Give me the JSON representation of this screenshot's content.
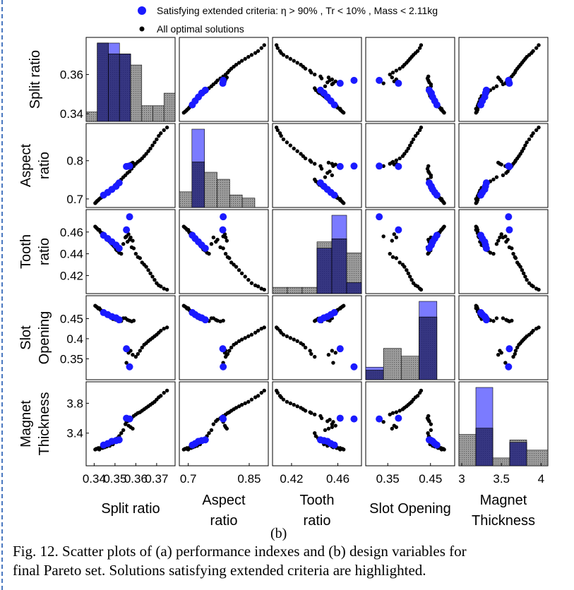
{
  "legend": {
    "highlight_label": "Satisfying extended criteria: η > 90% , Tr < 10% , Mass < 2.11kg",
    "all_label": "All optimal solutions",
    "highlight_color": "#1a1aff",
    "all_color": "#000000"
  },
  "panel_letter": "(b)",
  "caption": {
    "line1": "Fig. 12. Scatter plots of (a) performance indexes and (b) design variables for",
    "line2": "final Pareto set. Solutions satisfying extended criteria are highlighted."
  },
  "chart_data": {
    "type": "scatter",
    "variables": [
      {
        "key": "split",
        "name": "Split ratio",
        "ylabel": [
          "Split ratio"
        ],
        "xlabel": [
          "Split ratio"
        ],
        "range": [
          0.3375,
          0.3775
        ],
        "yticks": [
          {
            "v": 0.34,
            "t": "0.34"
          },
          {
            "v": 0.36,
            "t": "0.36"
          }
        ],
        "xticks": [
          {
            "v": 0.34,
            "t": "0.34"
          },
          {
            "v": 0.35,
            "t": "0.35"
          },
          {
            "v": 0.36,
            "t": "0.36"
          },
          {
            "v": 0.37,
            "t": "0.37"
          }
        ]
      },
      {
        "key": "aspect",
        "name": "Aspect ratio",
        "ylabel": [
          "Aspect",
          "ratio"
        ],
        "xlabel": [
          "Aspect",
          "ratio"
        ],
        "range": [
          0.685,
          0.89
        ],
        "yticks": [
          {
            "v": 0.7,
            "t": "0.7"
          },
          {
            "v": 0.8,
            "t": "0.8"
          }
        ],
        "xticks": [
          {
            "v": 0.7,
            "t": "0.7"
          },
          {
            "v": 0.85,
            "t": "0.85"
          }
        ]
      },
      {
        "key": "tooth",
        "name": "Tooth ratio",
        "ylabel": [
          "Tooth",
          "ratio"
        ],
        "xlabel": [
          "Tooth",
          "ratio"
        ],
        "range": [
          0.406,
          0.478
        ],
        "yticks": [
          {
            "v": 0.42,
            "t": "0.42"
          },
          {
            "v": 0.44,
            "t": "0.44"
          },
          {
            "v": 0.46,
            "t": "0.46"
          }
        ],
        "xticks": [
          {
            "v": 0.42,
            "t": "0.42"
          },
          {
            "v": 0.46,
            "t": "0.46"
          }
        ]
      },
      {
        "key": "slot",
        "name": "Slot Opening",
        "ylabel": [
          "Slot",
          "Opening"
        ],
        "xlabel": [
          "Slot Opening"
        ],
        "range": [
          0.305,
          0.5
        ],
        "yticks": [
          {
            "v": 0.35,
            "t": "0.35"
          },
          {
            "v": 0.4,
            "t": "0.4"
          },
          {
            "v": 0.45,
            "t": "0.45"
          }
        ],
        "xticks": [
          {
            "v": 0.35,
            "t": "0.35"
          },
          {
            "v": 0.45,
            "t": "0.45"
          }
        ]
      },
      {
        "key": "magnet",
        "name": "Magnet Thickness",
        "ylabel": [
          "Magnet",
          "Thickness"
        ],
        "xlabel": [
          "Magnet",
          "Thickness"
        ],
        "range": [
          3.0,
          4.05
        ],
        "yticks": [
          {
            "v": 3.4,
            "t": "3.4"
          },
          {
            "v": 3.8,
            "t": "3.8"
          }
        ],
        "xticks": [
          {
            "v": 3.0,
            "t": "3"
          },
          {
            "v": 3.5,
            "t": "3.5"
          },
          {
            "v": 4.0,
            "t": "4"
          }
        ]
      }
    ],
    "all_points": [
      [
        0.3405,
        0.689,
        0.465,
        0.482,
        3.18
      ],
      [
        0.341,
        0.692,
        0.464,
        0.48,
        3.19
      ],
      [
        0.3415,
        0.695,
        0.463,
        0.478,
        3.19
      ],
      [
        0.342,
        0.697,
        0.462,
        0.475,
        3.2
      ],
      [
        0.3425,
        0.7,
        0.462,
        0.476,
        3.18
      ],
      [
        0.343,
        0.702,
        0.46,
        0.472,
        3.2
      ],
      [
        0.3435,
        0.704,
        0.459,
        0.47,
        3.21
      ],
      [
        0.344,
        0.707,
        0.459,
        0.468,
        3.2
      ],
      [
        0.3445,
        0.709,
        0.457,
        0.465,
        3.22
      ],
      [
        0.345,
        0.711,
        0.456,
        0.466,
        3.21
      ],
      [
        0.3455,
        0.713,
        0.455,
        0.462,
        3.23
      ],
      [
        0.346,
        0.716,
        0.455,
        0.46,
        3.22
      ],
      [
        0.3465,
        0.718,
        0.453,
        0.458,
        3.24
      ],
      [
        0.347,
        0.72,
        0.452,
        0.456,
        3.25
      ],
      [
        0.3475,
        0.722,
        0.451,
        0.455,
        3.23
      ],
      [
        0.348,
        0.724,
        0.45,
        0.453,
        3.26
      ],
      [
        0.3485,
        0.727,
        0.449,
        0.451,
        3.27
      ],
      [
        0.349,
        0.729,
        0.448,
        0.449,
        3.25
      ],
      [
        0.3495,
        0.731,
        0.447,
        0.452,
        3.28
      ],
      [
        0.35,
        0.734,
        0.446,
        0.448,
        3.3
      ],
      [
        0.3505,
        0.737,
        0.444,
        0.447,
        3.31
      ],
      [
        0.351,
        0.741,
        0.443,
        0.45,
        3.33
      ],
      [
        0.352,
        0.746,
        0.441,
        0.446,
        3.36
      ],
      [
        0.353,
        0.751,
        0.44,
        0.444,
        3.4
      ],
      [
        0.354,
        0.757,
        0.449,
        0.451,
        3.44
      ],
      [
        0.355,
        0.762,
        0.455,
        0.451,
        3.52
      ],
      [
        0.356,
        0.768,
        0.451,
        0.447,
        3.56
      ],
      [
        0.357,
        0.772,
        0.453,
        0.445,
        3.58
      ],
      [
        0.358,
        0.779,
        0.446,
        0.443,
        3.6
      ],
      [
        0.359,
        0.786,
        0.445,
        0.445,
        3.63
      ],
      [
        0.36,
        0.792,
        0.44,
        0.355,
        3.65
      ],
      [
        0.361,
        0.797,
        0.437,
        0.362,
        3.67
      ],
      [
        0.362,
        0.801,
        0.436,
        0.37,
        3.68
      ],
      [
        0.363,
        0.806,
        0.432,
        0.378,
        3.7
      ],
      [
        0.364,
        0.812,
        0.43,
        0.385,
        3.72
      ],
      [
        0.365,
        0.818,
        0.428,
        0.389,
        3.74
      ],
      [
        0.366,
        0.825,
        0.425,
        0.394,
        3.76
      ],
      [
        0.367,
        0.832,
        0.422,
        0.398,
        3.78
      ],
      [
        0.368,
        0.84,
        0.419,
        0.402,
        3.8
      ],
      [
        0.369,
        0.848,
        0.416,
        0.406,
        3.82
      ],
      [
        0.37,
        0.856,
        0.413,
        0.41,
        3.85
      ],
      [
        0.371,
        0.865,
        0.411,
        0.415,
        3.88
      ],
      [
        0.372,
        0.872,
        0.41,
        0.42,
        3.9
      ],
      [
        0.3735,
        0.88,
        0.408,
        0.425,
        3.94
      ],
      [
        0.375,
        0.887,
        0.407,
        0.428,
        3.97
      ],
      [
        0.3555,
        0.786,
        0.456,
        0.34,
        3.55
      ],
      [
        0.3565,
        0.79,
        0.458,
        0.365,
        3.5
      ],
      [
        0.3575,
        0.792,
        0.455,
        0.37,
        3.48
      ],
      [
        0.3585,
        0.795,
        0.452,
        0.36,
        3.46
      ]
    ],
    "highlighted_points": [
      [
        0.3445,
        0.71,
        0.457,
        0.465,
        3.24
      ],
      [
        0.3465,
        0.717,
        0.454,
        0.46,
        3.26
      ],
      [
        0.3485,
        0.725,
        0.451,
        0.455,
        3.29
      ],
      [
        0.3505,
        0.733,
        0.448,
        0.452,
        3.3
      ],
      [
        0.352,
        0.742,
        0.445,
        0.447,
        3.31
      ],
      [
        0.3555,
        0.785,
        0.462,
        0.375,
        3.6
      ],
      [
        0.357,
        0.786,
        0.474,
        0.33,
        3.59
      ]
    ],
    "histograms": [
      {
        "bins": [
          0.3375,
          0.3425,
          0.3475,
          0.3525,
          0.3575,
          0.3625,
          0.3675,
          0.3725,
          0.3775
        ],
        "all": [
          0.12,
          1.0,
          0.86,
          0.86,
          0.72,
          0.2,
          0.2,
          0.36
        ],
        "highlighted": [
          0.0,
          1.0,
          1.0,
          0.86,
          0.0,
          0.0,
          0.0,
          0.0
        ]
      },
      {
        "bins": [
          0.685,
          0.714,
          0.743,
          0.772,
          0.801,
          0.83,
          0.859,
          0.888
        ],
        "all": [
          0.2,
          0.58,
          0.45,
          0.36,
          0.16,
          0.12,
          0.0
        ],
        "highlighted": [
          0.0,
          1.0,
          0.0,
          0.0,
          0.0,
          0.0,
          0.0
        ]
      },
      {
        "bins": [
          0.406,
          0.418,
          0.43,
          0.442,
          0.454,
          0.466,
          0.478
        ],
        "all": [
          0.08,
          0.08,
          0.08,
          0.66,
          0.7,
          0.52
        ],
        "highlighted": [
          0.0,
          0.0,
          0.0,
          0.58,
          1.0,
          0.14
        ]
      },
      {
        "bins": [
          0.305,
          0.344,
          0.383,
          0.422,
          0.461,
          0.5
        ],
        "all": [
          0.12,
          0.4,
          0.3,
          0.8,
          0.0
        ],
        "highlighted": [
          0.16,
          0.0,
          0.0,
          1.0,
          0.0
        ]
      },
      {
        "bins": [
          3.0,
          3.2,
          3.4,
          3.6,
          3.8,
          4.05
        ],
        "all": [
          0.4,
          0.48,
          0.1,
          0.33,
          0.2
        ],
        "highlighted": [
          0.0,
          1.0,
          0.0,
          0.3,
          0.0
        ]
      }
    ]
  }
}
